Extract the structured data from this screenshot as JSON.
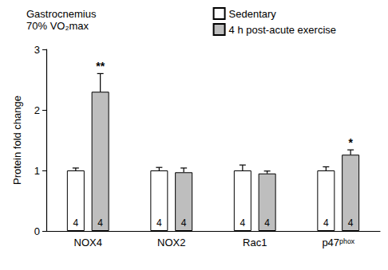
{
  "chart_data": {
    "type": "bar",
    "title": "Gastrocnemius",
    "subtitle": "70% VO₂max",
    "y_label": "Protein fold change",
    "categories": [
      "NOX4",
      "NOX2",
      "Rac1",
      "p47ᵖʰᵒˣ"
    ],
    "series": [
      {
        "name": "Sedentary",
        "color": "#ffffff",
        "values": [
          1.0,
          1.0,
          1.0,
          1.0
        ],
        "errors": [
          0.04,
          0.05,
          0.09,
          0.06
        ],
        "n": [
          4,
          4,
          4,
          4
        ],
        "significance": [
          null,
          null,
          null,
          null
        ]
      },
      {
        "name": "4 h post-acute exercise",
        "color": "#bebebe",
        "values": [
          2.3,
          0.97,
          0.95,
          1.26
        ],
        "errors": [
          0.3,
          0.07,
          0.04,
          0.08
        ],
        "n": [
          4,
          4,
          4,
          4
        ],
        "significance": [
          "**",
          null,
          null,
          "*"
        ]
      }
    ],
    "ylim": [
      0,
      3
    ],
    "yticks": [
      0,
      1,
      2,
      3
    ],
    "grid": false,
    "legend": "upper right"
  }
}
